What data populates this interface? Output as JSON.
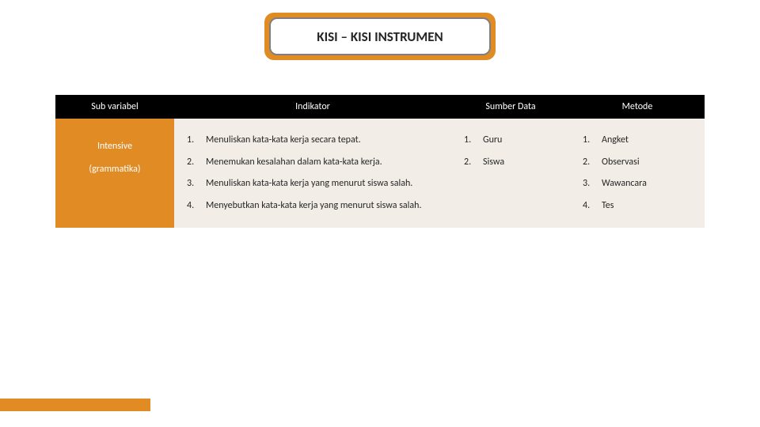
{
  "colors": {
    "accent": "#e08b24",
    "header_bg": "#000000",
    "header_text": "#ffffff",
    "body_text": "#262626",
    "title_border": "#7f7f7f",
    "cell_bg": "#f2ede6"
  },
  "title": "KISI – KISI INSTRUMEN",
  "headers": {
    "sub": "Sub variabel",
    "indikator": "Indikator",
    "sumber": "Sumber Data",
    "metode": "Metode"
  },
  "subvariabel": {
    "line1": "Intensive",
    "line2": "(grammatika)"
  },
  "indikator": [
    {
      "n": "1.",
      "t": "Menuliskan kata-kata kerja secara tepat."
    },
    {
      "n": "2.",
      "t": "Menemukan kesalahan dalam kata-kata kerja."
    },
    {
      "n": "3.",
      "t": "Menuliskan kata-kata kerja yang menurut siswa salah."
    },
    {
      "n": "4.",
      "t": "Menyebutkan kata-kata kerja yang menurut siswa salah."
    }
  ],
  "sumber": [
    {
      "n": "1.",
      "t": "Guru"
    },
    {
      "n": "2.",
      "t": "Siswa"
    }
  ],
  "metode": [
    {
      "n": "1.",
      "t": "Angket"
    },
    {
      "n": "2.",
      "t": "Observasi"
    },
    {
      "n": "3.",
      "t": "Wawancara"
    },
    {
      "n": "4.",
      "t": "Tes"
    }
  ]
}
